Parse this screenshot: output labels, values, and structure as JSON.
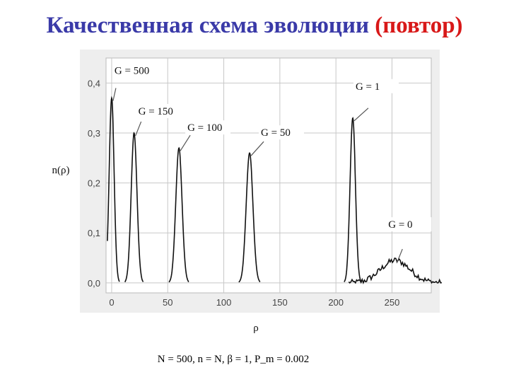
{
  "header": {
    "title_main": "Качественная схема эволюции",
    "title_accent": "(повтор)",
    "accent_color": "#d81818",
    "title_color": "#3a3aa8"
  },
  "footer": {
    "text": "N = 500, n = N, β = 1, P_m = 0.002"
  },
  "chart_data": {
    "type": "line",
    "xlabel": "ρ",
    "ylabel": "n(ρ)",
    "xlim": [
      -5,
      285
    ],
    "ylim": [
      -0.02,
      0.45
    ],
    "x_ticks": [
      0,
      50,
      100,
      150,
      200,
      250
    ],
    "x_tick_labels": [
      "0",
      "50",
      "100",
      "150",
      "200",
      "250"
    ],
    "y_ticks": [
      0.0,
      0.1,
      0.2,
      0.3,
      0.4
    ],
    "y_tick_labels": [
      "0,0",
      "0,1",
      "0,2",
      "0,3",
      "0,4"
    ],
    "grid": true,
    "series": [
      {
        "name": "G = 500",
        "peak_x": 0,
        "peak_y": 0.37,
        "width": 2.2
      },
      {
        "name": "G = 150",
        "peak_x": 20,
        "peak_y": 0.3,
        "width": 2.6
      },
      {
        "name": "G = 100",
        "peak_x": 60,
        "peak_y": 0.27,
        "width": 2.8
      },
      {
        "name": "G = 50",
        "peak_x": 123,
        "peak_y": 0.26,
        "width": 3.0
      },
      {
        "name": "G = 1",
        "peak_x": 215,
        "peak_y": 0.33,
        "width": 2.4
      },
      {
        "name": "G = 0",
        "peak_x": 253,
        "peak_y": 0.045,
        "width": 13
      }
    ],
    "annotations": [
      {
        "text": "G = 500",
        "series": "G = 500"
      },
      {
        "text": "G = 1",
        "series": "G = 1"
      },
      {
        "text": "G = 150",
        "series": "G = 150"
      },
      {
        "text": "G = 100",
        "series": "G = 100"
      },
      {
        "text": "G = 50",
        "series": "G = 50"
      },
      {
        "text": "G = 0",
        "series": "G = 0"
      }
    ]
  }
}
